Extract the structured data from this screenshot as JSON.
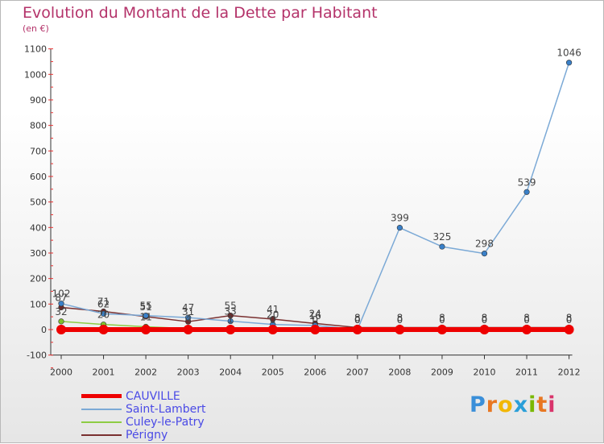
{
  "title": "Evolution du Montant de la Dette par Habitant",
  "subtitle": "(en €)",
  "logo": {
    "letters": [
      "P",
      "r",
      "o",
      "x",
      "i",
      "t",
      "i"
    ],
    "colors": [
      "#3a8fd9",
      "#e87722",
      "#f2b705",
      "#2a9fd8",
      "#7ab800",
      "#e87722",
      "#d9346b"
    ]
  },
  "chart_data": {
    "type": "line",
    "categories": [
      "2000",
      "2001",
      "2002",
      "2003",
      "2004",
      "2005",
      "2006",
      "2007",
      "2008",
      "2009",
      "2010",
      "2011",
      "2012"
    ],
    "ylim": [
      -100,
      1100
    ],
    "yticks": [
      -100,
      0,
      100,
      200,
      300,
      400,
      500,
      600,
      700,
      800,
      900,
      1000,
      1100
    ],
    "grid": false,
    "legend_position": "bottom-left",
    "series": [
      {
        "name": "CAUVILLE",
        "color": "#ee0000",
        "values": [
          0,
          0,
          0,
          0,
          0,
          0,
          0,
          0,
          0,
          0,
          0,
          0,
          0
        ],
        "labels": []
      },
      {
        "name": "Saint-Lambert",
        "color": "#7ba9d6",
        "marker": "#3a80c8",
        "values": [
          102,
          62,
          55,
          47,
          33,
          20,
          16,
          0,
          399,
          325,
          298,
          539,
          1046
        ],
        "labels": [
          "102",
          "62",
          "55",
          "47",
          "33",
          "20",
          "16",
          "0",
          "399",
          "325",
          "298",
          "539",
          "1046"
        ]
      },
      {
        "name": "Culey-le-Patry",
        "color": "#8dcc44",
        "marker": "#7ec02a",
        "values": [
          32,
          20,
          11,
          4,
          1,
          0,
          0,
          0,
          0,
          0,
          0,
          0,
          0
        ],
        "labels": [
          "32",
          "20",
          "11",
          "4",
          "1",
          "0",
          "0",
          "0",
          "0",
          "0",
          "0",
          "0",
          "0"
        ]
      },
      {
        "name": "Périgny",
        "color": "#7a3030",
        "marker": "#6b2a2a",
        "values": [
          87,
          71,
          51,
          31,
          55,
          41,
          24,
          8,
          8,
          8,
          8,
          8,
          8
        ],
        "labels": [
          "87",
          "71",
          "51",
          "31",
          "55",
          "41",
          "24",
          "8",
          "8",
          "8",
          "8",
          "8",
          "8"
        ]
      }
    ]
  }
}
